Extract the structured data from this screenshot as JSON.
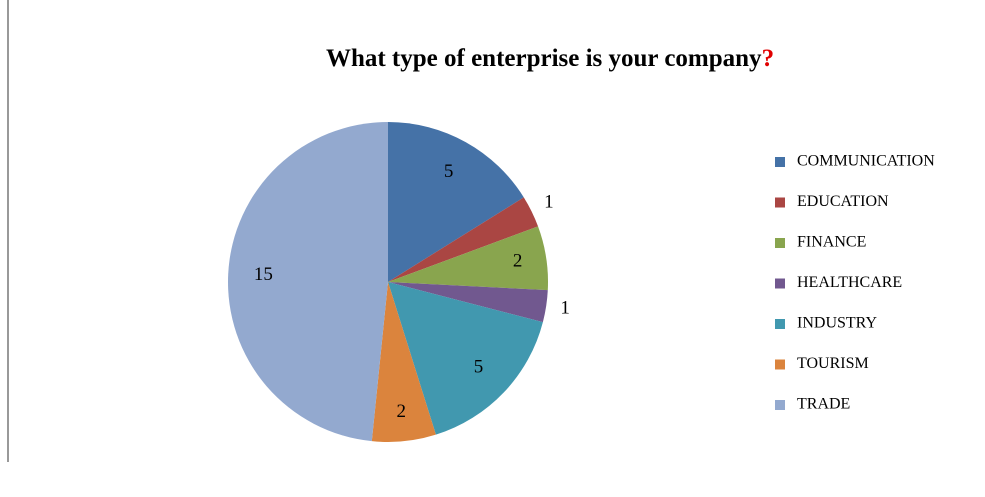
{
  "chart_data": {
    "type": "pie",
    "title": "What type of enterprise is your company?",
    "categories": [
      "COMMUNICATION",
      "EDUCATION",
      "FINANCE",
      "HEALTHCARE",
      "INDUSTRY",
      "TOURISM",
      "TRADE"
    ],
    "values": [
      5,
      1,
      2,
      1,
      5,
      2,
      15
    ],
    "colors": [
      "#4572a7",
      "#aa4643",
      "#89a54e",
      "#71588f",
      "#4198af",
      "#db843d",
      "#93a9cf"
    ],
    "legend": "right"
  }
}
